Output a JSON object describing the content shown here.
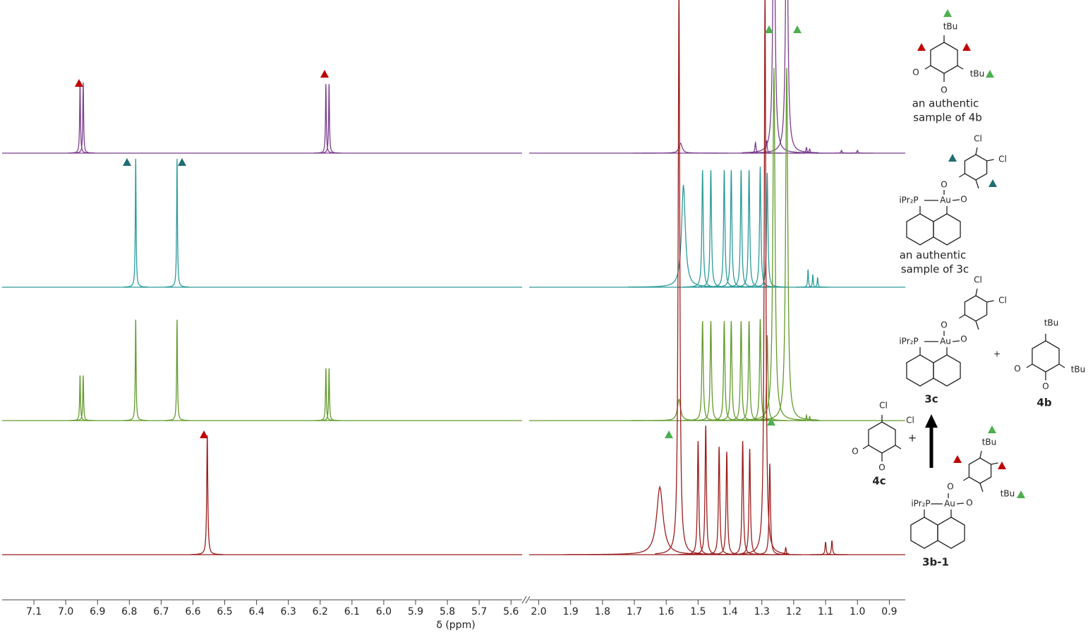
{
  "chart_data": {
    "type": "spectrum",
    "xlabel": "δ (ppm)",
    "segments": [
      {
        "xlim": [
          7.2,
          5.565
        ],
        "xticks": [
          7.1,
          {
            "value": 7.0,
            "label": "7.0"
          },
          6.9,
          6.8,
          6.7,
          6.6,
          6.5,
          6.4,
          6.3,
          6.2,
          6.1,
          {
            "value": 6.0,
            "label": "6.0"
          },
          5.9,
          5.8,
          5.7,
          5.6
        ]
      },
      {
        "xlim": [
          2.03,
          0.85
        ],
        "xticks": [
          {
            "value": 2.0,
            "label": "2.0"
          },
          1.9,
          1.8,
          1.7,
          1.6,
          1.5,
          1.4,
          1.3,
          1.2,
          1.1,
          {
            "value": 1.0,
            "label": "1.0"
          },
          0.9
        ]
      }
    ],
    "series": [
      {
        "color": "#7b3f8f",
        "peaks": [
          6.955,
          6.945,
          6.182,
          6.172,
          1.555,
          1.32,
          1.285,
          1.262,
          1.222,
          1.16,
          1.15,
          1.05,
          1.0
        ],
        "heights": [
          100,
          100,
          98,
          98,
          14,
          15,
          18,
          400,
          400,
          8,
          6,
          4,
          4
        ],
        "widths": [
          0.0015,
          0.0015,
          0.0015,
          0.0015,
          0.006,
          0.002,
          0.002,
          0.004,
          0.004,
          0.002,
          0.002,
          0.002,
          0.002
        ]
      },
      {
        "color": "#2c9b9b",
        "peaks": [
          6.78,
          6.65,
          1.546,
          1.486,
          1.46,
          1.418,
          1.396,
          1.365,
          1.34,
          1.305,
          1.283,
          1.155,
          1.14,
          1.125
        ],
        "heights": [
          182,
          182,
          145,
          166,
          166,
          166,
          166,
          166,
          166,
          171,
          162,
          25,
          18,
          14
        ],
        "widths": [
          0.0015,
          0.0015,
          0.007,
          0.0025,
          0.0025,
          0.0025,
          0.0025,
          0.0025,
          0.0025,
          0.0025,
          0.0025,
          0.0015,
          0.0015,
          0.0015
        ]
      },
      {
        "color": "#639b2c",
        "peaks": [
          6.955,
          6.945,
          6.78,
          6.65,
          6.182,
          6.172,
          1.56,
          1.486,
          1.46,
          1.418,
          1.396,
          1.365,
          1.34,
          1.305,
          1.283,
          1.262,
          1.222,
          1.16,
          1.15
        ],
        "heights": [
          64,
          64,
          143,
          143,
          74,
          74,
          30,
          141,
          141,
          141,
          141,
          141,
          141,
          144,
          121,
          500,
          500,
          8,
          6
        ],
        "widths": [
          0.0015,
          0.0015,
          0.0015,
          0.0015,
          0.0015,
          0.0015,
          0.006,
          0.0025,
          0.0025,
          0.0025,
          0.0025,
          0.0025,
          0.0025,
          0.0025,
          0.0025,
          0.004,
          0.004,
          0.0015,
          0.0015
        ]
      },
      {
        "color": "#9b1d1d",
        "peaks": [
          6.555,
          1.62,
          1.56,
          1.5,
          1.476,
          1.434,
          1.41,
          1.36,
          1.338,
          1.29,
          1.275,
          1.225,
          1.1,
          1.08
        ],
        "heights": [
          169,
          96,
          800,
          161,
          183,
          153,
          146,
          161,
          150,
          800,
          129,
          10,
          18,
          20
        ],
        "widths": [
          0.002,
          0.012,
          0.003,
          0.0025,
          0.0025,
          0.0025,
          0.0025,
          0.0025,
          0.0025,
          0.003,
          0.0025,
          0.002,
          0.002,
          0.002
        ]
      }
    ]
  },
  "structures": [
    {
      "labels": [
        "tBu",
        "tBu",
        "O",
        "O"
      ],
      "caption": [
        "an authentic",
        "sample of 4b"
      ]
    },
    {
      "labels": [
        "Cl",
        "Cl",
        "O",
        "O",
        "iPr₂P",
        "Au"
      ],
      "caption": [
        "an authentic",
        "sample of 3c"
      ]
    },
    {
      "labels": [
        "Cl",
        "Cl",
        "O",
        "O",
        "iPr₂P",
        "Au"
      ],
      "caption": [
        "3c"
      ]
    },
    {
      "labels": [
        "tBu",
        "tBu",
        "O",
        "O"
      ],
      "caption": [
        "4b"
      ]
    },
    {
      "labels": [
        "Cl",
        "Cl",
        "O",
        "O"
      ],
      "caption": [
        "4c"
      ]
    },
    {
      "labels": [
        "tBu",
        "tBu",
        "O",
        "O",
        "iPr₂P",
        "Au"
      ],
      "caption": [
        "3b-1"
      ]
    }
  ],
  "plus_signs": [
    "+",
    "+"
  ]
}
